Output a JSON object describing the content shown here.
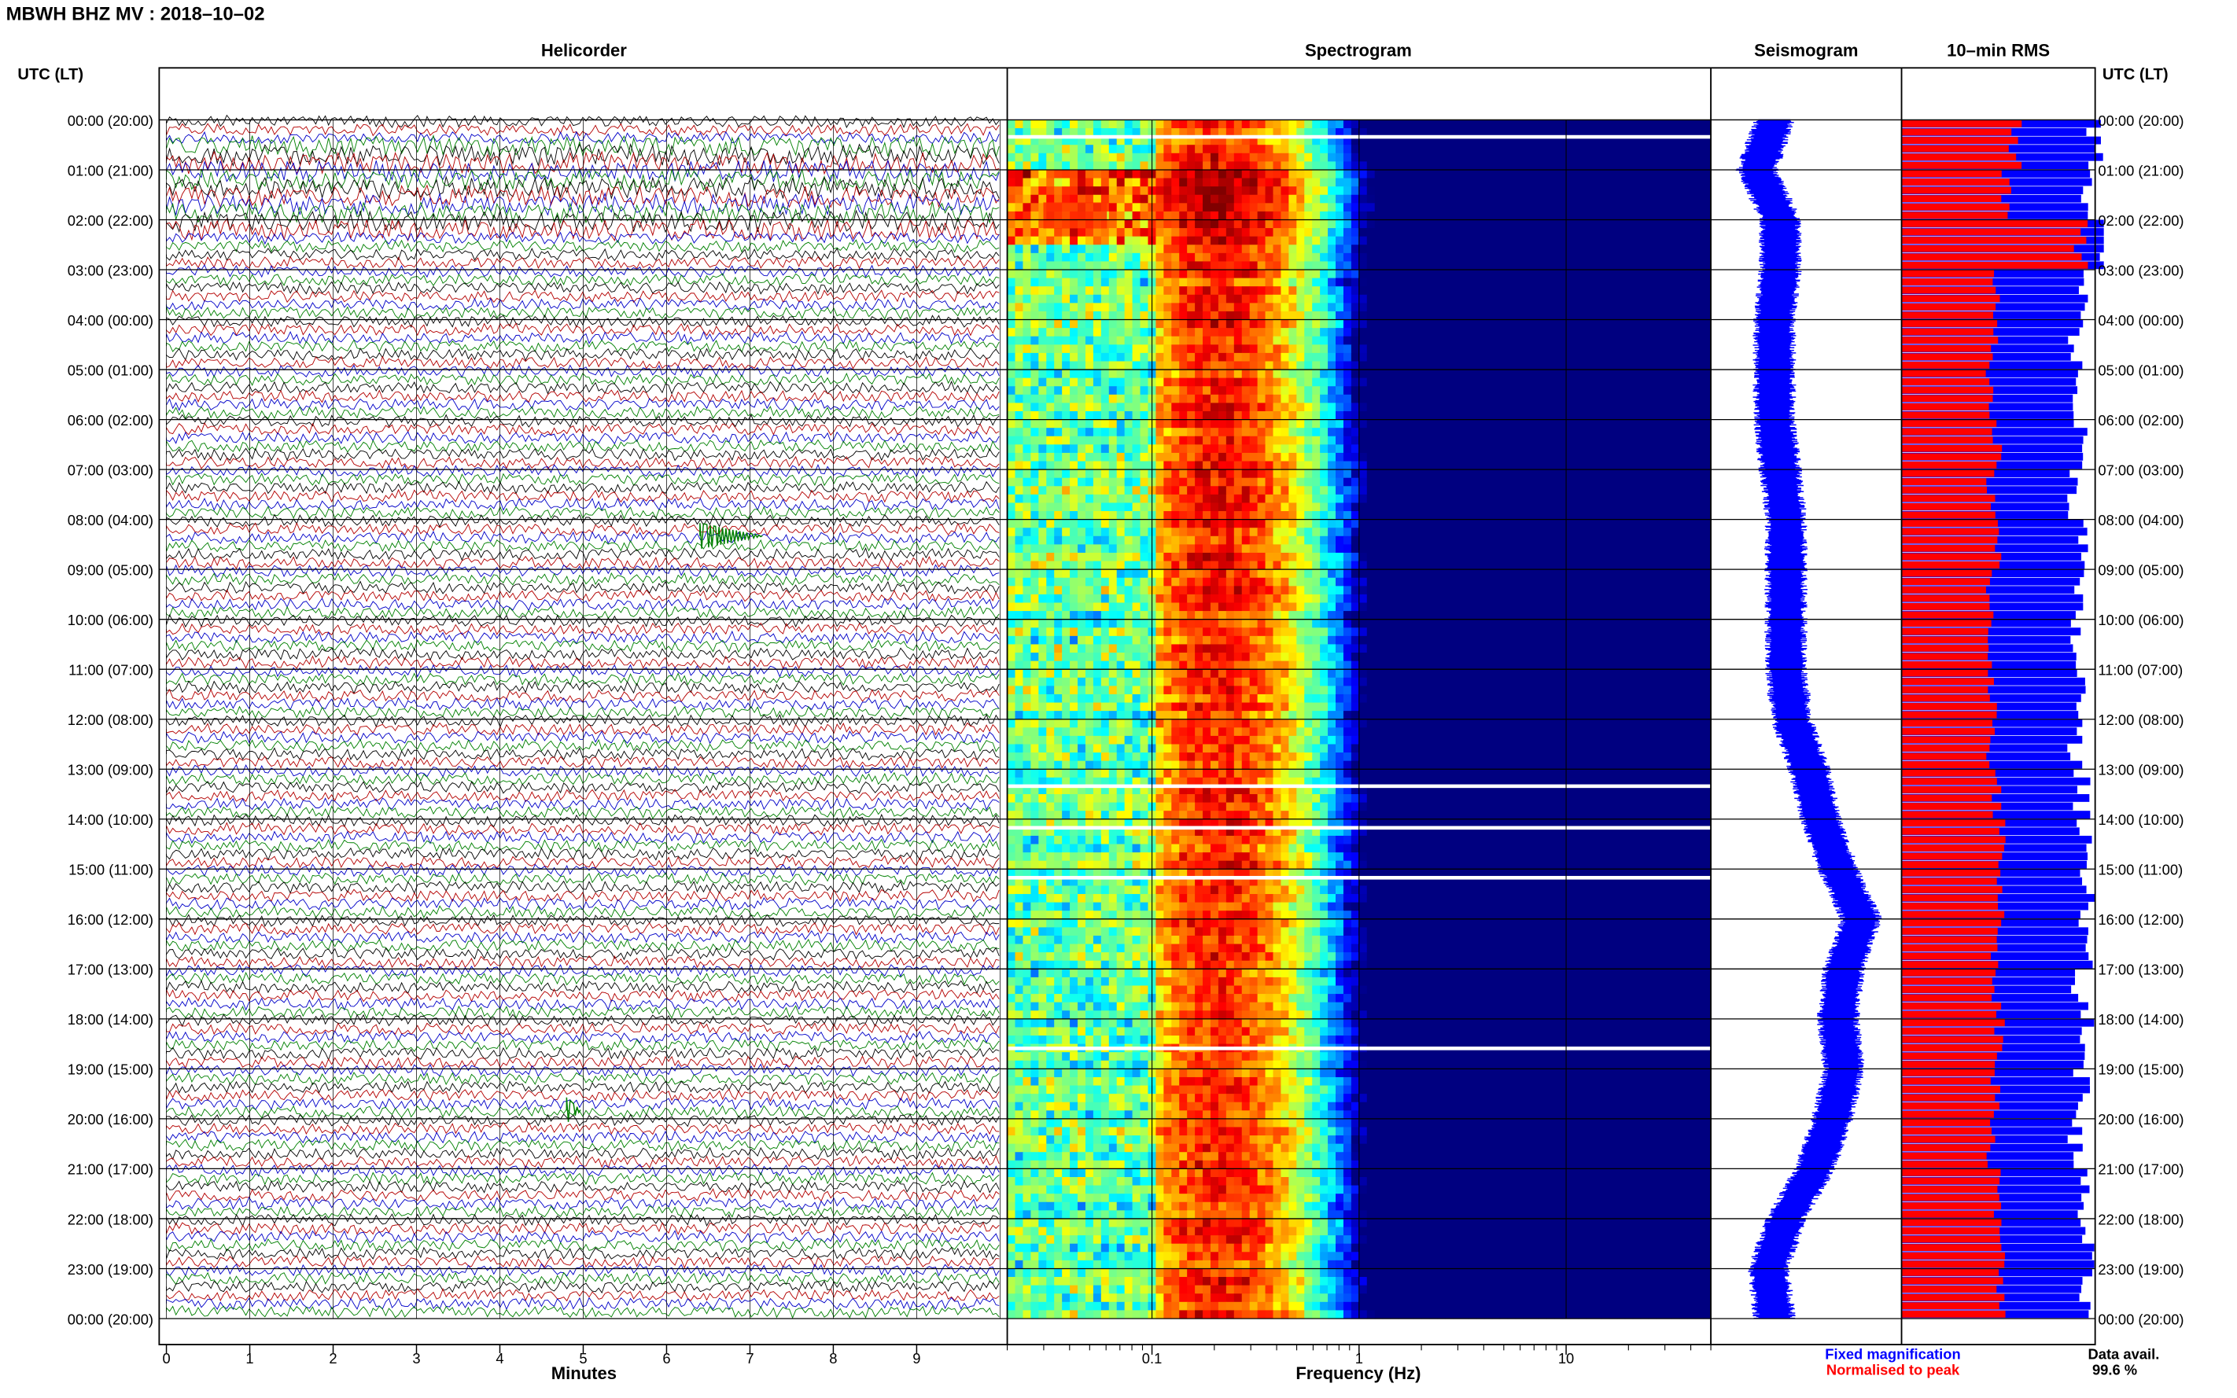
{
  "header": {
    "station_title": "MBWH BHZ MV : 2018–10–02",
    "utc_label_left": "UTC (LT)",
    "utc_label_right": "UTC (LT)"
  },
  "panels": {
    "helicorder": "Helicorder",
    "spectrogram": "Spectrogram",
    "seismogram": "Seismogram",
    "rms": "10–min RMS"
  },
  "time_labels": [
    "00:00 (20:00)",
    "01:00 (21:00)",
    "02:00 (22:00)",
    "03:00 (23:00)",
    "04:00 (00:00)",
    "05:00 (01:00)",
    "06:00 (02:00)",
    "07:00 (03:00)",
    "08:00 (04:00)",
    "09:00 (05:00)",
    "10:00 (06:00)",
    "11:00 (07:00)",
    "12:00 (08:00)",
    "13:00 (09:00)",
    "14:00 (10:00)",
    "15:00 (11:00)",
    "16:00 (12:00)",
    "17:00 (13:00)",
    "18:00 (14:00)",
    "19:00 (15:00)",
    "20:00 (16:00)",
    "21:00 (17:00)",
    "22:00 (18:00)",
    "23:00 (19:00)",
    "00:00 (20:00)"
  ],
  "helicorder_axis": {
    "ticks": [
      "0",
      "1",
      "2",
      "3",
      "4",
      "5",
      "6",
      "7",
      "8",
      "9"
    ],
    "xlabel": "Minutes"
  },
  "spectrogram_axis": {
    "ticks": [
      "0.1",
      "1",
      "10"
    ],
    "xlabel": "Frequency (Hz)"
  },
  "legend": {
    "fixed": "Fixed magnification",
    "normalised": "Normalised to peak",
    "data_avail_label": "Data avail.",
    "data_avail_value": "99.6 %"
  },
  "colors": {
    "trace_cycle": [
      "#000000",
      "#b40000",
      "#0000c8",
      "#008000"
    ],
    "fixed_magnification": "#0000ff",
    "normalised_to_peak": "#ff0000"
  },
  "chart_data": [
    {
      "type": "line",
      "name": "helicorder",
      "xlabel": "Minutes",
      "xlim": [
        0,
        10
      ],
      "rows_per_hour": 6,
      "row_count": 144,
      "color_cycle": [
        "black",
        "red",
        "blue",
        "green"
      ],
      "events": [
        {
          "time": "08:20",
          "minute": 6.4,
          "note": "green spindle"
        },
        {
          "time": "19:50",
          "minute": 4.8,
          "note": "small green burst"
        }
      ]
    },
    {
      "type": "heatmap",
      "name": "spectrogram",
      "xlabel": "Frequency (Hz)",
      "xscale": "log",
      "xlim": [
        0.02,
        50
      ],
      "peak_band_hz": [
        0.15,
        0.3
      ],
      "gaps_utc": [
        "00:20",
        "13:20",
        "14:10",
        "15:10",
        "18:35"
      ]
    },
    {
      "type": "line",
      "name": "seismogram",
      "trend_offsets": [
        0,
        -0.3,
        0.1,
        0.1,
        0.0,
        0.0,
        0.0,
        0.1,
        0.2,
        0.2,
        0.2,
        0.2,
        0.3,
        0.6,
        0.8,
        1.1,
        1.5,
        1.2,
        1.1,
        1.2,
        1.0,
        0.7,
        0.2,
        -0.1,
        0.0
      ]
    },
    {
      "type": "bar",
      "name": "10-min RMS",
      "series": [
        {
          "name": "Fixed magnification",
          "values": [
            1.0,
            0.95,
            1.05,
            0.93,
            0.9,
            0.9,
            0.92,
            0.9,
            0.93,
            0.9,
            0.9,
            0.92,
            0.9,
            0.93,
            0.95,
            0.97,
            0.95,
            0.92,
            0.95,
            0.93,
            0.9,
            0.93,
            0.95,
            0.95
          ]
        },
        {
          "name": "Normalised to peak",
          "values": [
            0.6,
            0.55,
            0.95,
            0.5,
            0.48,
            0.47,
            0.5,
            0.47,
            0.5,
            0.47,
            0.47,
            0.48,
            0.47,
            0.5,
            0.52,
            0.53,
            0.5,
            0.5,
            0.52,
            0.5,
            0.47,
            0.5,
            0.52,
            0.53
          ]
        }
      ]
    }
  ]
}
